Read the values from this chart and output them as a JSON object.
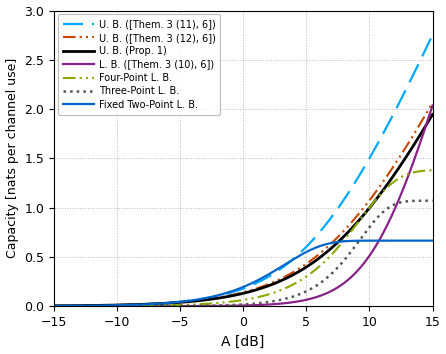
{
  "xlabel": "A [dB]",
  "ylabel": "Capacity [nats per channel use]",
  "xlim": [
    -15,
    15
  ],
  "ylim": [
    0,
    3
  ],
  "xticks": [
    -15,
    -10,
    -5,
    0,
    5,
    10,
    15
  ],
  "yticks": [
    0,
    0.5,
    1,
    1.5,
    2,
    2.5,
    3
  ],
  "colors": {
    "ub_them11": "#00AAFF",
    "ub_them12": "#CC4400",
    "ub_prop1": "#000000",
    "lb_them10": "#882288",
    "four_point": "#88AA00",
    "three_point": "#555555",
    "fixed_two": "#0066CC"
  },
  "legend_labels": [
    "U. B. ([Them. 3 (11), 6])",
    "U. B. ([Them. 3 (12), 6])",
    "U. B. (Prop. 1)",
    "L. B. ([Them. 3 (10), 6])",
    "Four-Point L. B.",
    "Three-Point L. B.",
    "Fixed Two-Point L. B."
  ],
  "curve_params": {
    "ub1": {
      "a": 1.902,
      "b": 2.5
    },
    "ub2": {
      "a": 2.354,
      "b": 2.215
    },
    "ubp": {
      "a": 2.5,
      "b": 2.18
    },
    "lb10": {
      "a": 3.8,
      "b": 4.2
    },
    "four": {
      "sat": 1.38,
      "c": 3.1,
      "d": 30.0
    },
    "three": {
      "sat": 1.07,
      "c": 4.2,
      "d": 75.0
    },
    "fixed": {
      "sat": 0.665,
      "c": 4.5,
      "d": 55.0
    }
  }
}
